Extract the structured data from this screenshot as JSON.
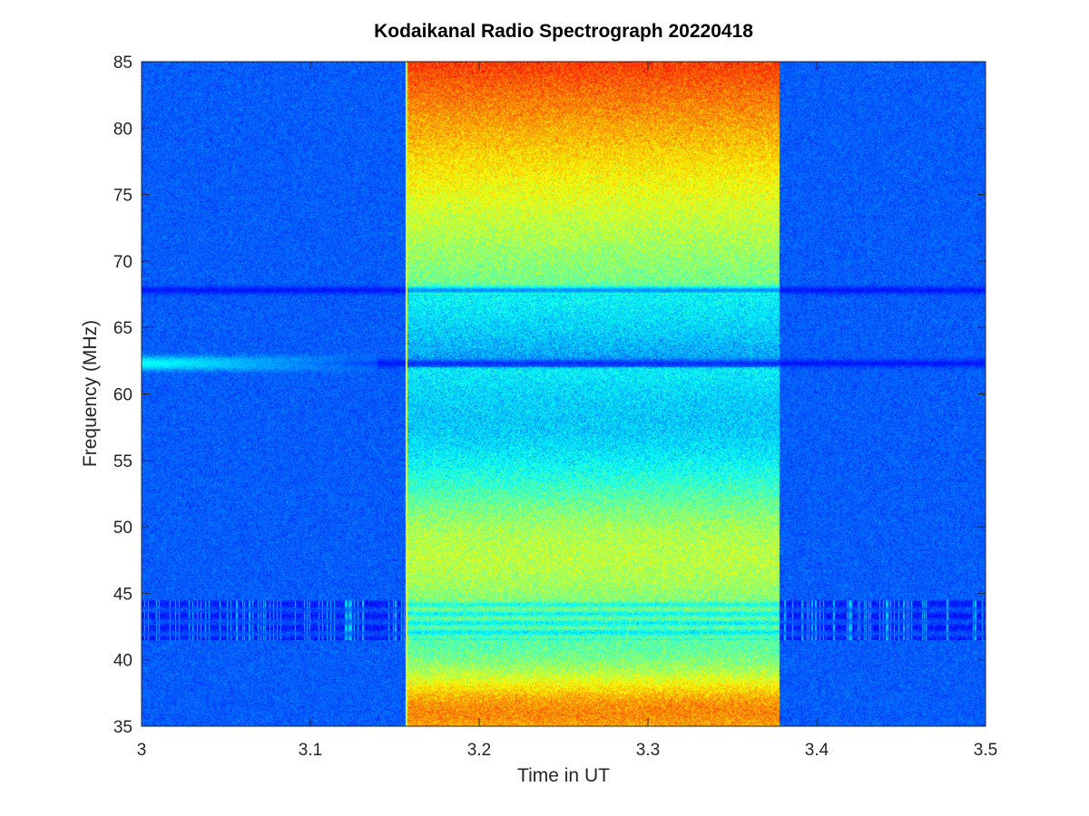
{
  "chart_data": {
    "type": "heatmap",
    "title": "Kodaikanal Radio Spectrograph  20220418",
    "xlabel": "Time in UT",
    "ylabel": "Frequency (MHz)",
    "xlim": [
      3,
      3.5
    ],
    "ylim": [
      35,
      85
    ],
    "x_ticks": [
      "3",
      "3.1",
      "3.2",
      "3.3",
      "3.4",
      "3.5"
    ],
    "y_ticks": [
      "35",
      "40",
      "45",
      "50",
      "55",
      "60",
      "65",
      "70",
      "75",
      "80",
      "85"
    ],
    "x_tick_values": [
      3,
      3.1,
      3.2,
      3.3,
      3.4,
      3.5
    ],
    "y_tick_values": [
      35,
      40,
      45,
      50,
      55,
      60,
      65,
      70,
      75,
      80,
      85
    ],
    "colormap": "jet",
    "grid": false,
    "legend": "none",
    "regions": [
      {
        "name": "quiet background",
        "x_range": [
          3.0,
          3.157
        ],
        "intensity": "low"
      },
      {
        "name": "enhanced emission",
        "x_range": [
          3.157,
          3.378
        ],
        "intensity": "high"
      },
      {
        "name": "quiet background",
        "x_range": [
          3.378,
          3.5
        ],
        "intensity": "low"
      }
    ],
    "features": [
      {
        "type": "dark band",
        "freq_mhz": 67.8
      },
      {
        "type": "dark band",
        "freq_mhz": 62.3
      },
      {
        "type": "bright band",
        "freq_mhz": 62.3,
        "x_range": [
          3.0,
          3.14
        ]
      },
      {
        "type": "interference band",
        "freq_range_mhz": [
          41.5,
          44.5
        ]
      }
    ]
  }
}
